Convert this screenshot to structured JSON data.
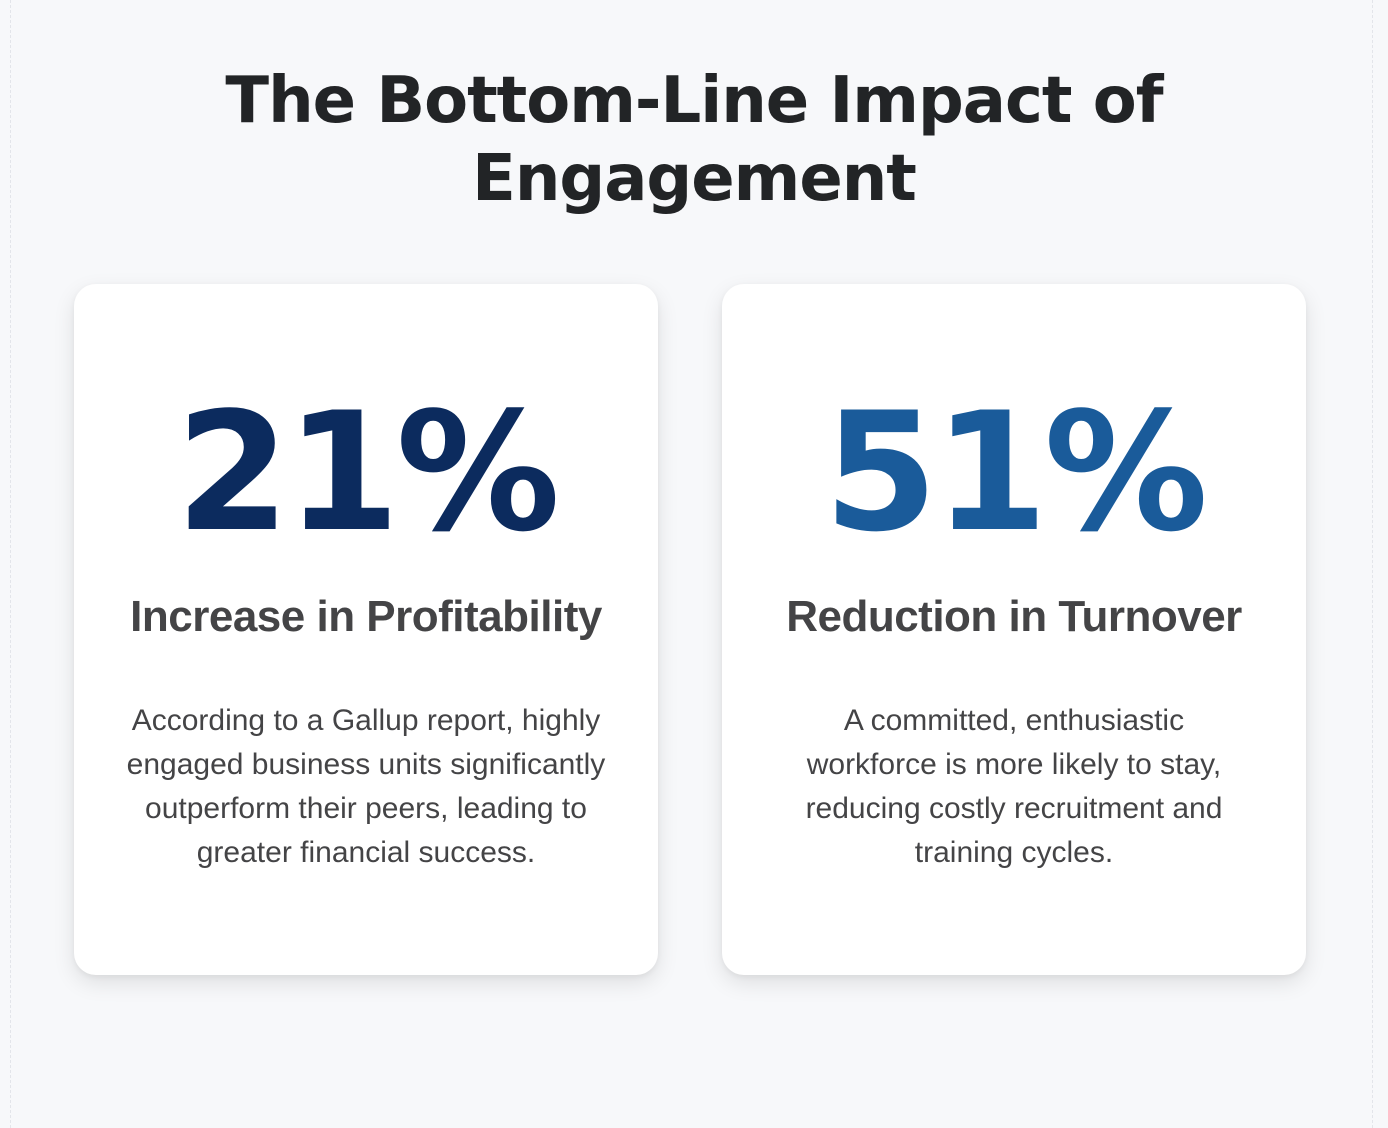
{
  "title": {
    "line1": "The Bottom-Line Impact of",
    "line2": "Engagement"
  },
  "stats": [
    {
      "value": "21%",
      "label": "Increase in Profitability",
      "description": "According to a Gallup report, highly engaged business units significantly outperform their peers, leading to greater financial success.",
      "color": "#0c2b5e"
    },
    {
      "value": "51%",
      "label": "Reduction in Turnover",
      "description": "A committed, enthusiastic workforce is more likely to stay, reducing costly recruitment and training cycles.",
      "color": "#1a5b9a"
    }
  ],
  "colors": {
    "background": "#f7f8fa",
    "card": "#ffffff",
    "heading": "#222426",
    "body_text": "#444446"
  }
}
